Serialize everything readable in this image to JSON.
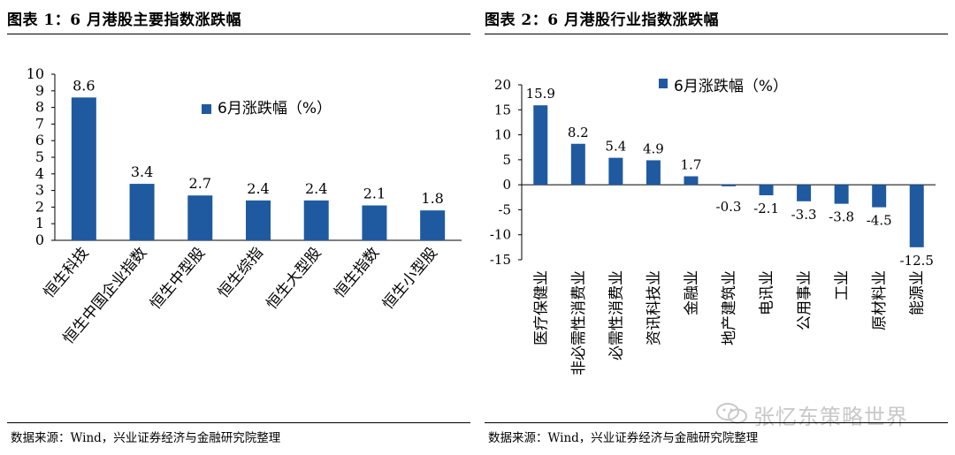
{
  "left": {
    "title": "图表 1：6 月港股主要指数涨跌幅",
    "source": "数据来源：Wind，兴业证券经济与金融研究院整理"
  },
  "right": {
    "title": "图表 2：6 月港股行业指数涨跌幅",
    "source": "数据来源：Wind，兴业证券经济与金融研究院整理"
  },
  "watermark": {
    "text": "张忆东策略世界",
    "icon": "wechat-icon"
  },
  "colors": {
    "bar": "#1F5AA0",
    "axis": "#000000"
  },
  "chart_data": [
    {
      "type": "bar",
      "title": "",
      "legend": "6月涨跌幅（%）",
      "categories": [
        "恒生科技",
        "恒生中国企业指数",
        "恒生中型股",
        "恒生综指",
        "恒生大型股",
        "恒生指数",
        "恒生小型股"
      ],
      "values": [
        8.6,
        3.4,
        2.7,
        2.4,
        2.4,
        2.1,
        1.8
      ],
      "value_labels": [
        "8.6",
        "3.4",
        "2.7",
        "2.4",
        "2.4",
        "2.1",
        "1.8"
      ],
      "ylim": [
        0,
        10
      ],
      "yticks": [
        0,
        1,
        2,
        3,
        4,
        5,
        6,
        7,
        8,
        9,
        10
      ],
      "xlabel": "",
      "ylabel": ""
    },
    {
      "type": "bar",
      "title": "",
      "legend": "6月涨跌幅（%）",
      "categories": [
        "医疗保健业",
        "非必需性消费业",
        "必需性消费业",
        "资讯科技业",
        "金融业",
        "地产建筑业",
        "电讯业",
        "公用事业",
        "工业",
        "原材料业",
        "能源业"
      ],
      "values": [
        15.9,
        8.2,
        5.4,
        4.9,
        1.7,
        -0.3,
        -2.1,
        -3.3,
        -3.8,
        -4.5,
        -12.5
      ],
      "value_labels": [
        "15.9",
        "8.2",
        "5.4",
        "4.9",
        "1.7",
        "-0.3",
        "-2.1",
        "-3.3",
        "-3.8",
        "-4.5",
        "-12.5"
      ],
      "ylim": [
        -15,
        20
      ],
      "yticks": [
        -15,
        -10,
        -5,
        0,
        5,
        10,
        15,
        20
      ],
      "xlabel": "",
      "ylabel": ""
    }
  ]
}
